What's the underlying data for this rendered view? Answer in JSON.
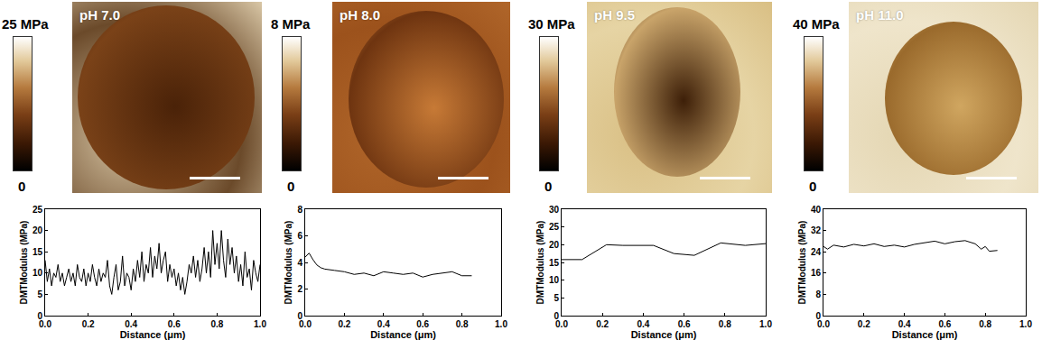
{
  "chart_data": [
    {
      "type": "line",
      "title": "pH 7.0",
      "xlabel": "Distance (μm)",
      "ylabel": "DMTModulus (MPa)",
      "color": "#000000",
      "grid": false,
      "xlim": [
        0,
        1.0
      ],
      "ylim": [
        0,
        25
      ],
      "xticks": [
        {
          "value": 0,
          "label": "0.0"
        },
        0.2,
        0.4,
        0.6,
        0.8,
        {
          "value": 1,
          "label": "1.0"
        }
      ],
      "yticks": [
        0,
        5,
        10,
        15,
        20,
        25
      ],
      "color_range": [
        0,
        25
      ],
      "color_ticks": [
        0,
        {
          "value": 25,
          "label": "25 MPa"
        }
      ],
      "x": [
        0,
        0.01,
        0.02,
        0.03,
        0.04,
        0.05,
        0.06,
        0.07,
        0.08,
        0.09,
        0.1,
        0.11,
        0.12,
        0.13,
        0.14,
        0.15,
        0.16,
        0.17,
        0.18,
        0.19,
        0.2,
        0.21,
        0.22,
        0.23,
        0.24,
        0.25,
        0.26,
        0.27,
        0.28,
        0.29,
        0.3,
        0.31,
        0.32,
        0.33,
        0.34,
        0.35,
        0.36,
        0.37,
        0.38,
        0.39,
        0.4,
        0.41,
        0.42,
        0.43,
        0.44,
        0.45,
        0.46,
        0.47,
        0.48,
        0.49,
        0.5,
        0.51,
        0.52,
        0.53,
        0.54,
        0.55,
        0.56,
        0.57,
        0.58,
        0.59,
        0.6,
        0.61,
        0.62,
        0.63,
        0.64,
        0.65,
        0.66,
        0.67,
        0.68,
        0.69,
        0.7,
        0.71,
        0.72,
        0.73,
        0.74,
        0.75,
        0.76,
        0.77,
        0.78,
        0.79,
        0.8,
        0.81,
        0.82,
        0.83,
        0.84,
        0.85,
        0.86,
        0.87,
        0.88,
        0.89,
        0.9,
        0.91,
        0.92,
        0.93,
        0.94,
        0.95,
        0.96,
        0.97,
        0.98,
        0.99,
        1.0
      ],
      "values": [
        13,
        8,
        11,
        7,
        10,
        9,
        12,
        8,
        10,
        7,
        9,
        11,
        8,
        10,
        7,
        12,
        9,
        8,
        11,
        7,
        10,
        8,
        12,
        9,
        7,
        11,
        8,
        10,
        9,
        13,
        7,
        5,
        9,
        12,
        6,
        8,
        14,
        7,
        10,
        9,
        6,
        11,
        8,
        13,
        9,
        15,
        8,
        12,
        10,
        16,
        9,
        14,
        11,
        17,
        10,
        13,
        15,
        8,
        12,
        9,
        11,
        7,
        10,
        6,
        9,
        5,
        8,
        12,
        10,
        14,
        9,
        13,
        8,
        11,
        16,
        10,
        15,
        9,
        20,
        12,
        17,
        11,
        20,
        13,
        9,
        18,
        12,
        16,
        10,
        14,
        8,
        12,
        7,
        15,
        9,
        11,
        6,
        13,
        10,
        8,
        12
      ]
    },
    {
      "type": "line",
      "title": "pH 8.0",
      "xlabel": "Distance (μm)",
      "ylabel": "DMTModulus (MPa)",
      "color": "#000000",
      "grid": false,
      "xlim": [
        0,
        1.0
      ],
      "ylim": [
        0,
        8
      ],
      "xticks": [
        {
          "value": 0,
          "label": "0.0"
        },
        0.2,
        0.4,
        0.6,
        0.8,
        {
          "value": 1,
          "label": "1.0"
        }
      ],
      "yticks": [
        0,
        2,
        4,
        6,
        8
      ],
      "color_range": [
        0,
        8
      ],
      "color_ticks": [
        0,
        {
          "value": 8,
          "label": "8 MPa"
        }
      ],
      "x": [
        0,
        0.02,
        0.04,
        0.06,
        0.08,
        0.1,
        0.15,
        0.2,
        0.25,
        0.3,
        0.35,
        0.4,
        0.45,
        0.5,
        0.55,
        0.6,
        0.65,
        0.7,
        0.75,
        0.8,
        0.85
      ],
      "values": [
        4.4,
        4.7,
        4.2,
        3.8,
        3.6,
        3.5,
        3.4,
        3.3,
        3.1,
        3.2,
        3.0,
        3.3,
        3.2,
        3.1,
        3.2,
        2.9,
        3.1,
        3.2,
        3.3,
        3.0,
        3.0
      ]
    },
    {
      "type": "line",
      "title": "pH 9.5",
      "xlabel": "Distance (μm)",
      "ylabel": "DMTModulus (MPa)",
      "color": "#000000",
      "grid": false,
      "xlim": [
        0,
        1.0
      ],
      "ylim": [
        0,
        30
      ],
      "xticks": [
        {
          "value": 0,
          "label": "0.0"
        },
        0.2,
        0.4,
        0.6,
        0.8,
        {
          "value": 1,
          "label": "1.0"
        }
      ],
      "yticks": [
        0,
        5,
        10,
        15,
        20,
        25,
        30
      ],
      "color_range": [
        0,
        30
      ],
      "color_ticks": [
        0,
        {
          "value": 30,
          "label": "30 MPa"
        }
      ],
      "x": [
        0,
        0.1,
        0.22,
        0.3,
        0.45,
        0.55,
        0.65,
        0.78,
        0.9,
        1.0
      ],
      "values": [
        15.8,
        15.8,
        20,
        19.8,
        19.8,
        17.5,
        17,
        20.5,
        19.8,
        20.3
      ]
    },
    {
      "type": "line",
      "title": "pH 11.0",
      "xlabel": "Distance (μm)",
      "ylabel": "DMTModulus (MPa)",
      "color": "#000000",
      "grid": false,
      "xlim": [
        0,
        1.0
      ],
      "ylim": [
        0,
        40
      ],
      "xticks": [
        {
          "value": 0,
          "label": "0.0"
        },
        0.2,
        0.4,
        0.6,
        0.8,
        {
          "value": 1,
          "label": "1.0"
        }
      ],
      "yticks": [
        0,
        8,
        16,
        24,
        32,
        40
      ],
      "color_range": [
        0,
        40
      ],
      "color_ticks": [
        0,
        {
          "value": 40,
          "label": "40 MPa"
        }
      ],
      "x": [
        0,
        0.02,
        0.05,
        0.1,
        0.15,
        0.2,
        0.25,
        0.3,
        0.35,
        0.4,
        0.45,
        0.5,
        0.55,
        0.6,
        0.65,
        0.7,
        0.75,
        0.78,
        0.8,
        0.82,
        0.86
      ],
      "values": [
        26,
        25,
        26.5,
        25.8,
        26.8,
        26.2,
        27,
        26,
        26.5,
        25.8,
        26.8,
        27.5,
        28,
        27,
        27.8,
        28.2,
        27,
        25,
        26,
        24.2,
        24.5
      ]
    }
  ]
}
